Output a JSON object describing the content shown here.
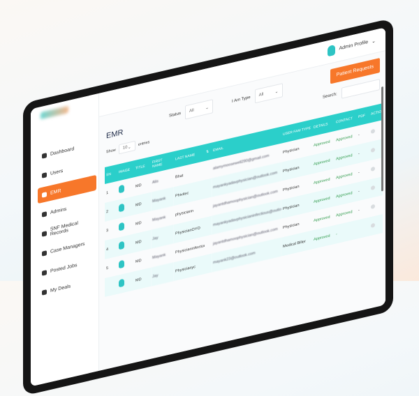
{
  "sidebar": {
    "items": [
      {
        "label": "Dashboard",
        "icon": "dashboard-icon"
      },
      {
        "label": "Users",
        "icon": "users-icon"
      },
      {
        "label": "EMR",
        "icon": "emr-icon",
        "active": true
      },
      {
        "label": "Admins",
        "icon": "admin-icon"
      },
      {
        "label": "SNF Medical Records",
        "icon": "folder-icon"
      },
      {
        "label": "Case Managers",
        "icon": "folder-icon"
      },
      {
        "label": "Posted Jobs",
        "icon": "briefcase-icon"
      },
      {
        "label": "My Deals",
        "icon": "briefcase-icon"
      }
    ]
  },
  "header": {
    "profile": "Admin Profile",
    "patient_requests": "Patient Requests"
  },
  "filters": {
    "status_label": "Status",
    "status_value": "All",
    "type_label": "I Am Type",
    "type_value": "All",
    "search_label": "Search:"
  },
  "page": {
    "title": "EMR",
    "show": "Show",
    "entries_value": "10",
    "entries": "entries"
  },
  "table": {
    "columns": [
      "SN",
      "IMAGE",
      "TITLE",
      "FIRST NAME",
      "LAST NAME",
      "⇅",
      "EMAIL",
      "USER FAM TYPE",
      "DETAILS",
      "CONTACT",
      "PDF",
      "ACTION"
    ],
    "rows": [
      {
        "sn": "1",
        "title": "MD",
        "first": "Alis",
        "last": "Bhat",
        "email": "alamymoosewell290@gmail.com",
        "type": "Physician",
        "details": "Approved",
        "contact": "Approved",
        "pdf": "-"
      },
      {
        "sn": "2",
        "title": "MD",
        "first": "Mayank",
        "last": "Phivitec",
        "email": "mayankyadavphysician@outlook.com",
        "type": "Physician",
        "details": "Approved",
        "contact": "Approved",
        "pdf": "-"
      },
      {
        "sn": "3",
        "title": "MD",
        "first": "Mayank",
        "last": "physiciann",
        "email": "jayantdhamoophysician@outlook.com",
        "type": "Physician",
        "details": "Approved",
        "contact": "Approved",
        "pdf": "-"
      },
      {
        "sn": "4",
        "title": "MD",
        "first": "Jay",
        "last": "PhysicianOYO",
        "email": "mayankyadavphysicianinfectious@outlook.com",
        "type": "Physician",
        "details": "Approved",
        "contact": "Approved",
        "pdf": "-"
      },
      {
        "sn": "5",
        "title": "MD",
        "first": "Mayank",
        "last": "Physicianinfectious",
        "email": "jayantdhamoophysician@outlook.com",
        "type": "Physician",
        "details": "Approved",
        "contact": "Approved",
        "pdf": "-"
      },
      {
        "sn": "",
        "title": "MD",
        "first": "Jay",
        "last": "Physicianyc",
        "email": "mayank23@outlook.com",
        "type": "Medical Biller",
        "details": "Approved",
        "contact": "-",
        "pdf": ""
      }
    ]
  },
  "colors": {
    "accent": "#f7772a",
    "teal": "#2bcfca",
    "approved": "#2e9a4a"
  }
}
